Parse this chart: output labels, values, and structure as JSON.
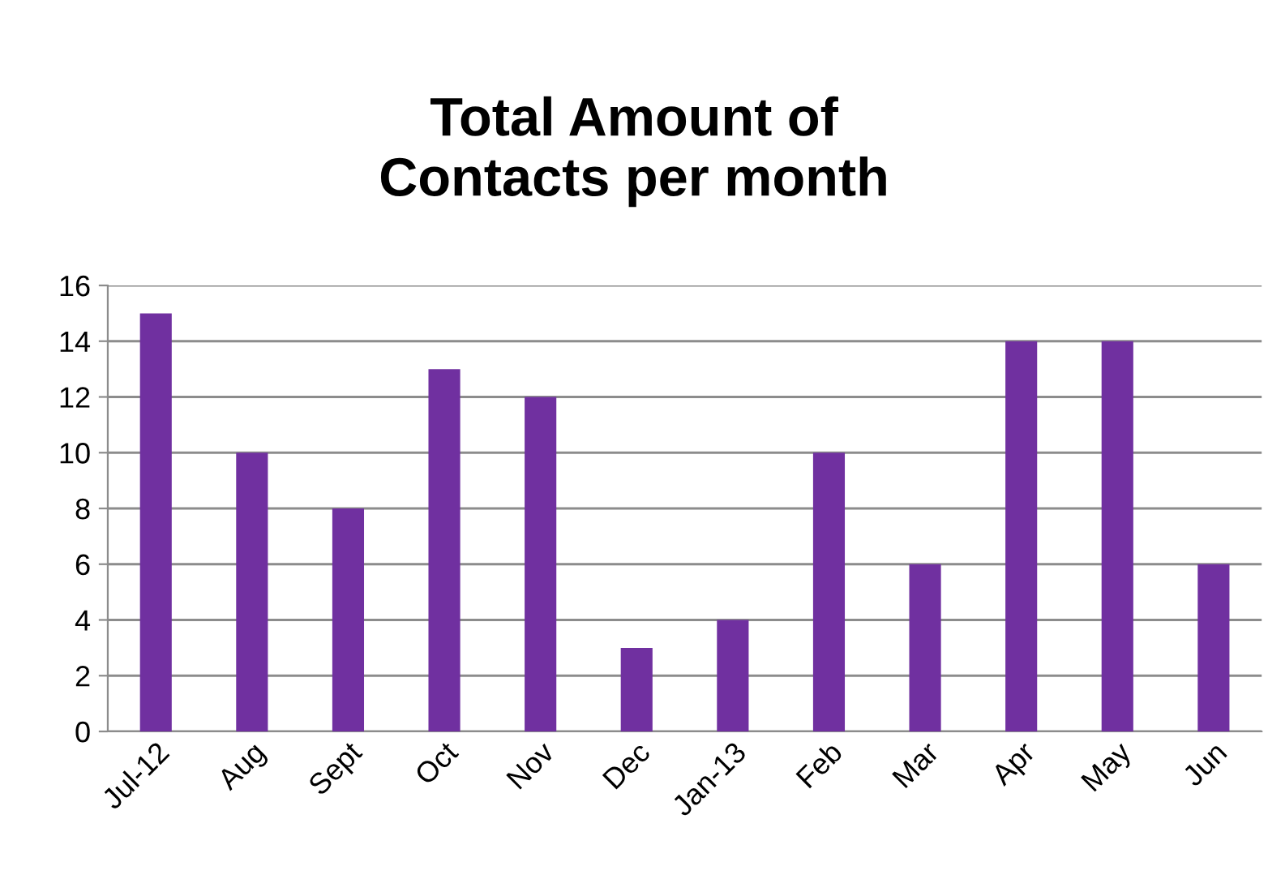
{
  "chart_data": {
    "type": "bar",
    "title": "Total Amount of\nContacts per month",
    "categories": [
      "Jul-12",
      "Aug",
      "Sept",
      "Oct",
      "Nov",
      "Dec",
      "Jan-13",
      "Feb",
      "Mar",
      "Apr",
      "May",
      "Jun"
    ],
    "values": [
      15,
      10,
      8,
      13,
      12,
      3,
      4,
      10,
      6,
      14,
      14,
      6
    ],
    "color": "#7030a0",
    "ylim": [
      0,
      16
    ],
    "yticks": [
      0,
      2,
      4,
      6,
      8,
      10,
      12,
      14,
      16
    ],
    "grid": "y"
  }
}
